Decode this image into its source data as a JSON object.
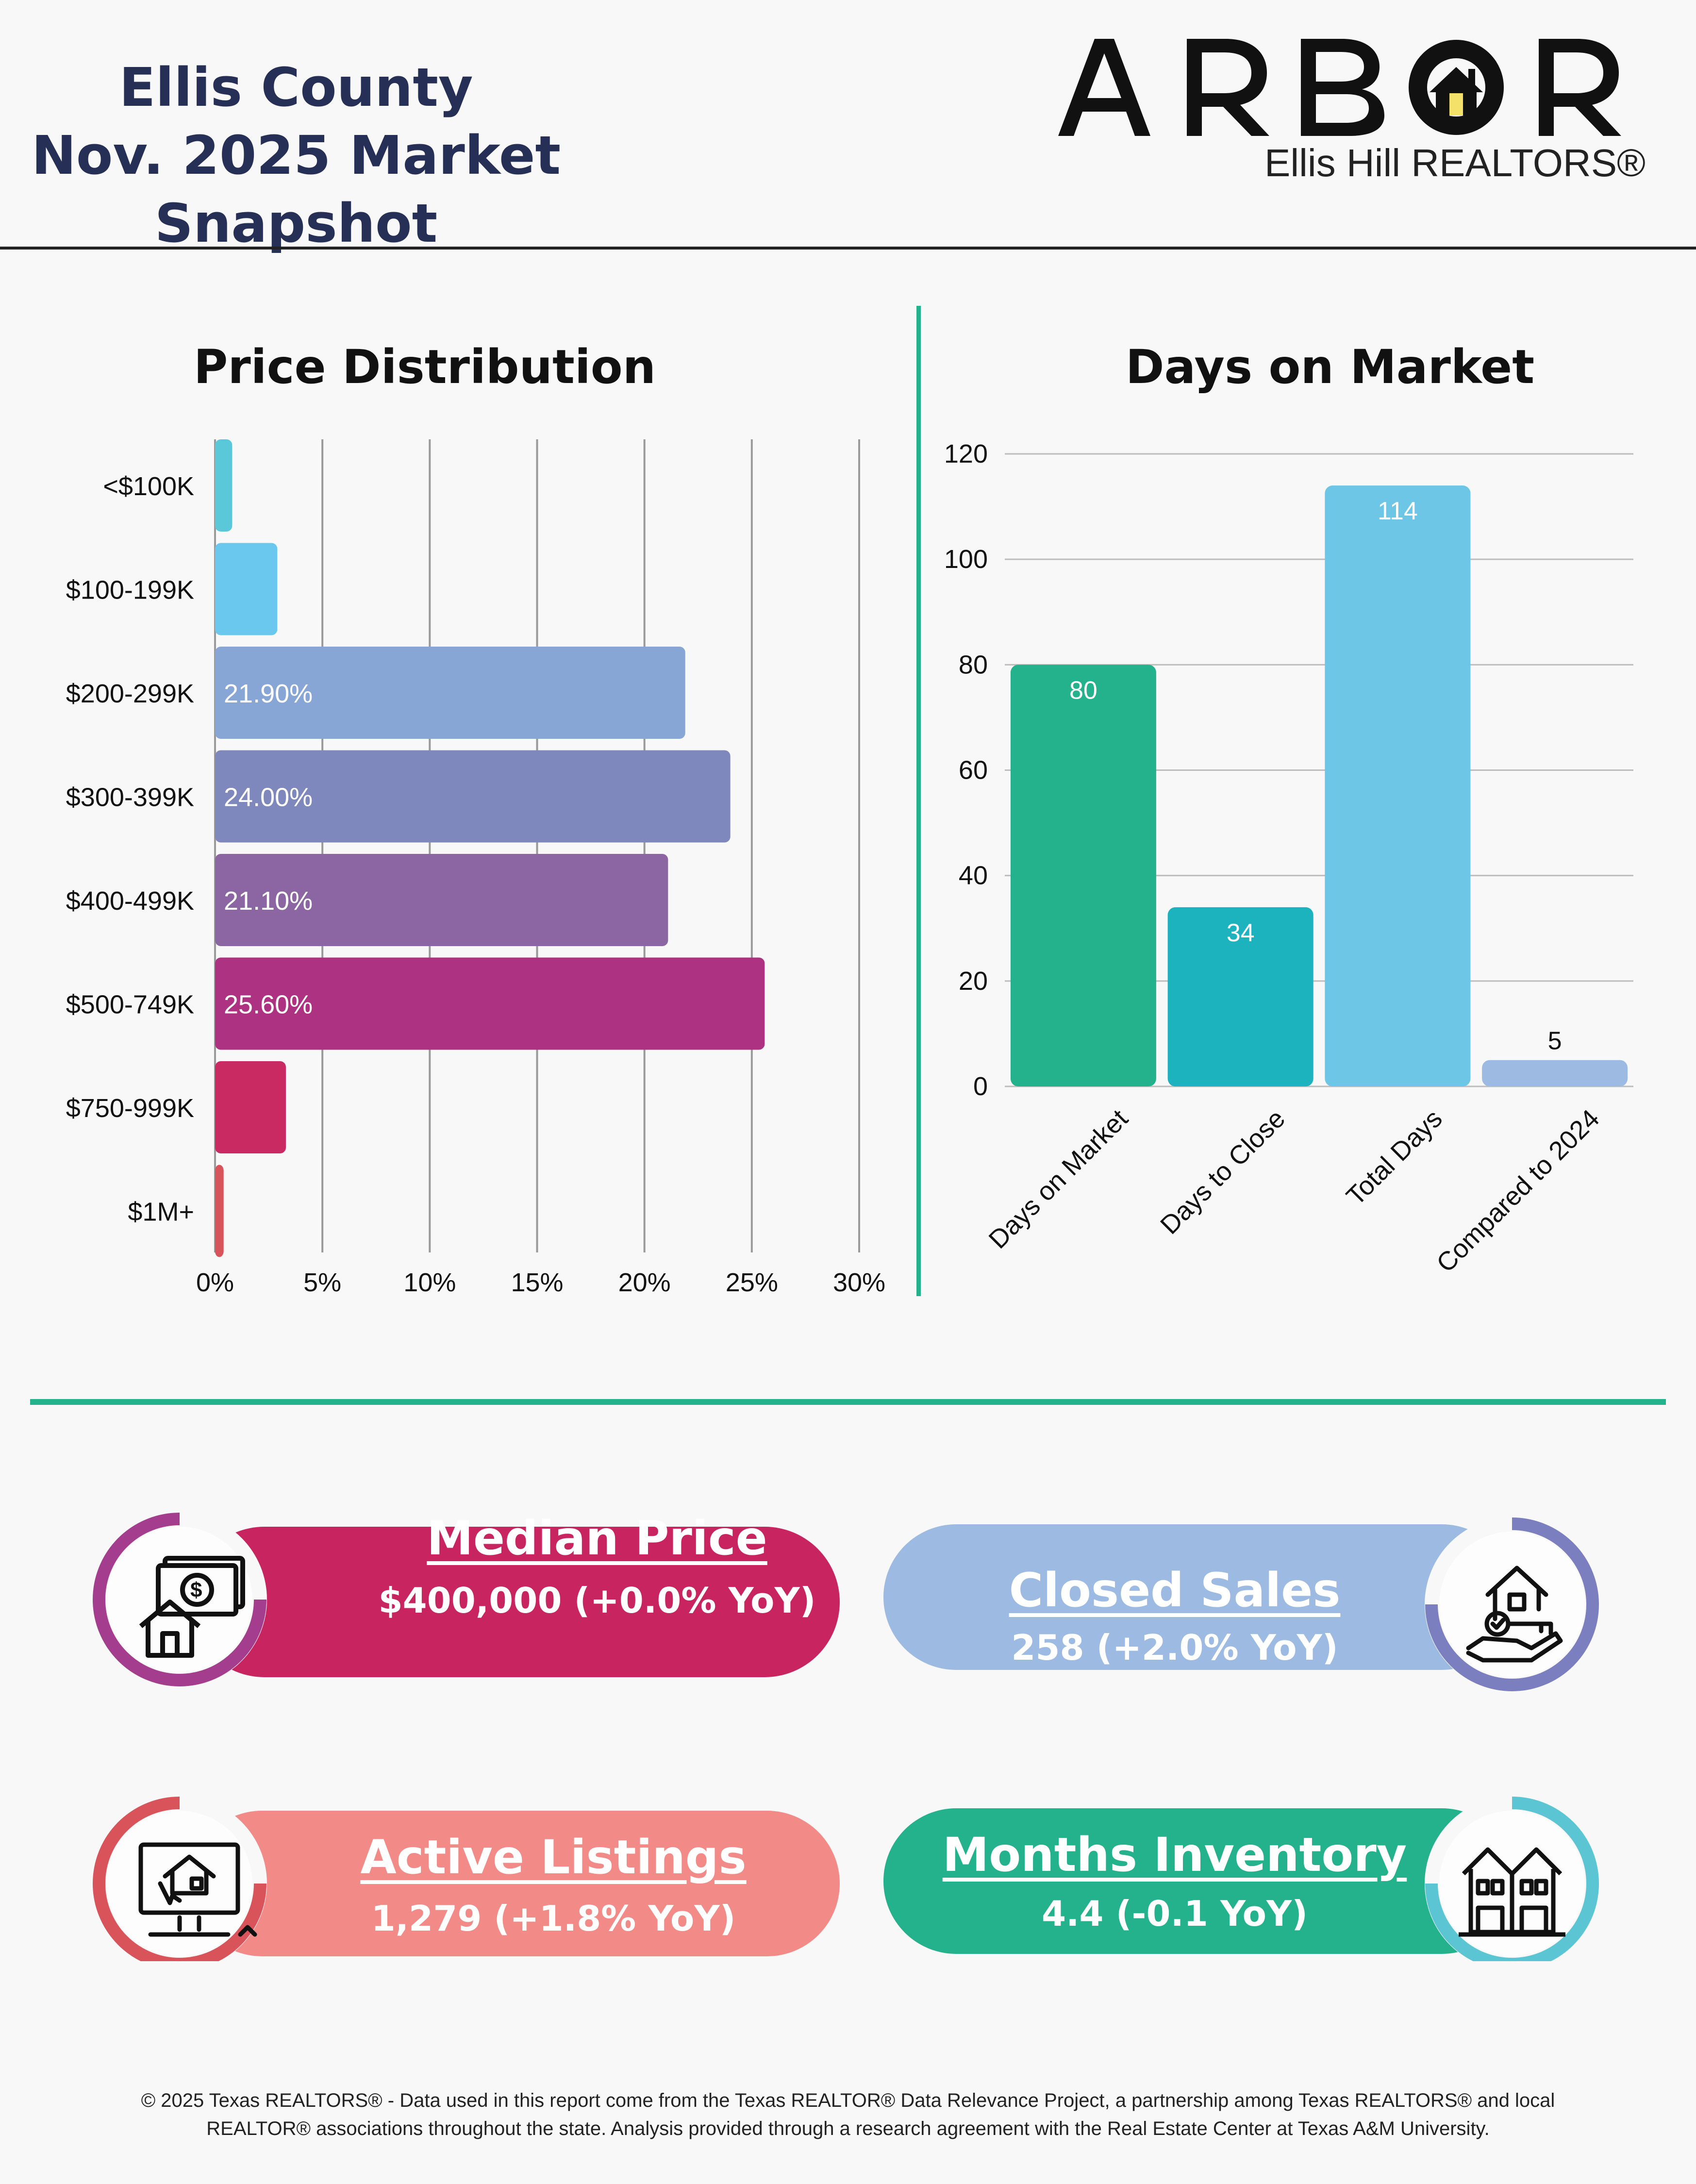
{
  "header": {
    "title_line1": "Ellis County",
    "title_line2": "Nov. 2025 Market Snapshot",
    "brand_name": "ARBOR",
    "brand_sub": "Ellis Hill REALTORS®"
  },
  "chart_data": [
    {
      "type": "bar",
      "orientation": "horizontal",
      "title": "Price Distribution",
      "categories": [
        "<$100K",
        "$100-199K",
        "$200-299K",
        "$300-399K",
        "$400-499K",
        "$500-749K",
        "$750-999K",
        "$1M+"
      ],
      "values": [
        0.8,
        2.9,
        21.9,
        24.0,
        21.1,
        25.6,
        3.3,
        0.4
      ],
      "data_labels": [
        "",
        "",
        "21.90%",
        "24.00%",
        "21.10%",
        "25.60%",
        "",
        ""
      ],
      "colors": [
        "#5ac8d8",
        "#6ac7ee",
        "#87a6d6",
        "#7e88bc",
        "#8c65a3",
        "#ad3382",
        "#c92a62",
        "#d9535a"
      ],
      "xlim": [
        0,
        30
      ],
      "x_ticks": [
        "0%",
        "5%",
        "10%",
        "15%",
        "20%",
        "25%",
        "30%"
      ],
      "grid": "vertical"
    },
    {
      "type": "bar",
      "title": "Days on Market",
      "categories": [
        "Days on Market",
        "Days to Close",
        "Total Days",
        "Compared to 2024"
      ],
      "values": [
        80,
        34,
        114,
        5
      ],
      "data_labels": [
        "80",
        "34",
        "114",
        "5"
      ],
      "colors": [
        "#23b28b",
        "#1db3be",
        "#6ec6e6",
        "#9dbbe2"
      ],
      "ylim": [
        0,
        120
      ],
      "y_ticks": [
        "0",
        "20",
        "40",
        "60",
        "80",
        "100",
        "120"
      ],
      "grid": "horizontal"
    }
  ],
  "stats": {
    "median": {
      "title": "Median Price",
      "value": "$400,000 (+0.0% YoY)",
      "icon": "money-house-icon"
    },
    "closed": {
      "title": "Closed Sales",
      "value": "258 (+2.0% YoY)",
      "icon": "house-key-hand-icon"
    },
    "active": {
      "title": "Active Listings",
      "value": "1,279 (+1.8% YoY)",
      "icon": "computer-listing-icon"
    },
    "months": {
      "title": "Months Inventory",
      "value": "4.4 (-0.1 YoY)",
      "icon": "townhouses-icon"
    }
  },
  "footer": {
    "line1": "© 2025 Texas REALTORS® - Data used in this report come from the Texas REALTOR® Data Relevance Project, a partnership among Texas REALTORS® and local",
    "line2": "REALTOR® associations throughout the state. Analysis provided through a research agreement with the Real Estate Center at Texas A&M University."
  }
}
